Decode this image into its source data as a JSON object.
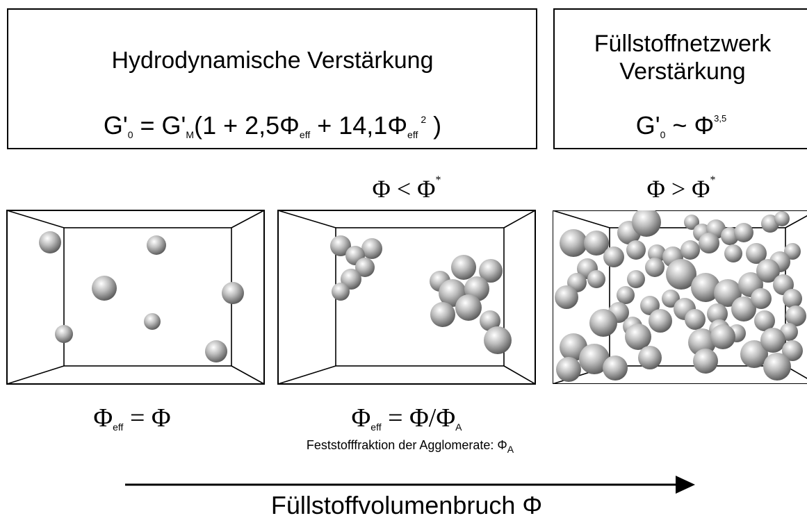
{
  "hydro_box": {
    "title": "Hydrodynamische Verstärkung",
    "formula": [
      "G'",
      "0",
      " = G'",
      "M",
      "(1 + 2,5Φ",
      "eff",
      " + 14,1Φ",
      "eff",
      "2",
      " )"
    ]
  },
  "network_box": {
    "title": [
      "Füllstoffnetzwerk",
      "Verstärkung"
    ],
    "formula": [
      "G'",
      "0",
      " ~ Φ",
      "3,5"
    ]
  },
  "conditions": [
    [
      "Φ < Φ",
      "*"
    ],
    [
      "Φ > Φ",
      "*"
    ]
  ],
  "relations": [
    [
      "Φ",
      "eff",
      " = Φ"
    ],
    [
      "Φ",
      "eff",
      " = Φ/Φ",
      "A"
    ]
  ],
  "note": [
    "Feststofffraktion der Agglomerate: Φ",
    "A"
  ],
  "axis_label": "Füllstoffvolumenbruch Φ"
}
